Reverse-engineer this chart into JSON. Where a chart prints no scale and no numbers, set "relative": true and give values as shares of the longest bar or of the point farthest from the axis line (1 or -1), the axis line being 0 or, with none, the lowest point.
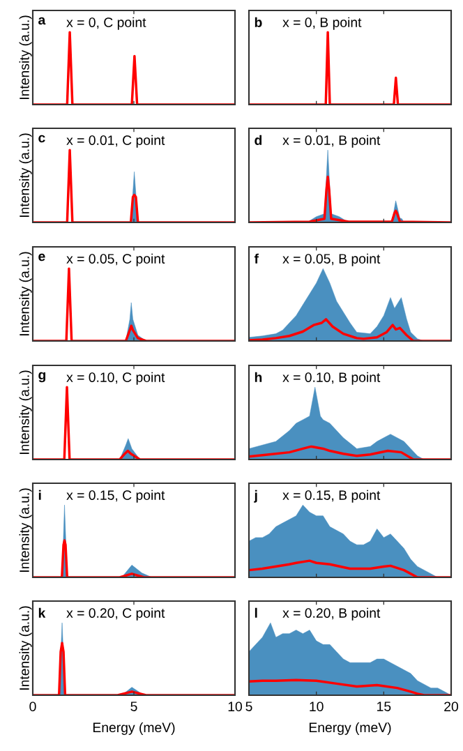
{
  "chart_data": [
    {
      "type": "line",
      "title": "x = 0, C point",
      "annotations": [
        "a"
      ],
      "ylabel": "Intensity (a.u.)",
      "relative": true,
      "xlim": [
        0,
        10
      ],
      "xticks": [
        0,
        5,
        10
      ],
      "tick_labels": false,
      "series": [
        {
          "type": "line",
          "color": "#ff0000",
          "x": [
            0,
            1.7,
            1.83,
            1.96,
            4.9,
            5.03,
            5.16,
            10
          ],
          "values": [
            0,
            0,
            1,
            0,
            0,
            0.67,
            0,
            0
          ]
        }
      ]
    },
    {
      "type": "line",
      "title": "x = 0, B point",
      "annotations": [
        "b"
      ],
      "relative": true,
      "xlim": [
        5,
        20
      ],
      "xticks": [
        5,
        10,
        15,
        20
      ],
      "tick_labels": false,
      "series": [
        {
          "type": "line",
          "color": "#ff0000",
          "x": [
            5,
            10.7,
            10.85,
            11.0,
            15.75,
            15.9,
            16.05,
            20
          ],
          "values": [
            0,
            0,
            1,
            0,
            0,
            0.37,
            0,
            0
          ]
        }
      ]
    },
    {
      "type": "line",
      "title": "x = 0.01, C point",
      "annotations": [
        "c"
      ],
      "ylabel": "Intensity (a.u.)",
      "relative": true,
      "xlim": [
        0,
        10
      ],
      "xticks": [
        0,
        5,
        10
      ],
      "tick_labels": false,
      "series": [
        {
          "type": "area",
          "color": "#4a90c0",
          "x": [
            4.85,
            5.02,
            5.2
          ],
          "values": [
            0,
            0.7,
            0
          ]
        },
        {
          "type": "line",
          "color": "#ff0000",
          "x": [
            0,
            1.7,
            1.83,
            1.96,
            4.85,
            4.95,
            5.02,
            5.1,
            5.2,
            10
          ],
          "values": [
            0,
            0,
            1,
            0,
            0,
            0.35,
            0.38,
            0.35,
            0,
            0
          ]
        }
      ]
    },
    {
      "type": "line",
      "title": "x = 0.01, B point",
      "annotations": [
        "d"
      ],
      "relative": true,
      "xlim": [
        5,
        20
      ],
      "xticks": [
        5,
        10,
        15,
        20
      ],
      "tick_labels": false,
      "series": [
        {
          "type": "area",
          "color": "#4a90c0",
          "x": [
            9.3,
            10,
            10.6,
            10.85,
            11.1,
            11.7,
            12.4,
            15.6,
            15.89,
            16.2,
            16.35,
            16.5
          ],
          "values": [
            0,
            0.08,
            0.12,
            1.0,
            0.12,
            0.08,
            0,
            0,
            0.3,
            0.06,
            0.05,
            0
          ]
        },
        {
          "type": "line",
          "color": "#ff0000",
          "x": [
            5,
            9.5,
            10.6,
            10.75,
            10.85,
            10.95,
            11.1,
            12.4,
            15.6,
            15.8,
            15.89,
            15.98,
            16.2,
            20
          ],
          "values": [
            0,
            0.01,
            0.05,
            0.45,
            0.63,
            0.45,
            0.05,
            0.01,
            0.01,
            0.13,
            0.16,
            0.13,
            0.01,
            0
          ]
        }
      ]
    },
    {
      "type": "line",
      "title": "x = 0.05, C point",
      "annotations": [
        "e"
      ],
      "ylabel": "Intensity (a.u.)",
      "relative": true,
      "xlim": [
        0,
        10
      ],
      "xticks": [
        0,
        5,
        10
      ],
      "tick_labels": false,
      "series": [
        {
          "type": "area",
          "color": "#4a90c0",
          "x": [
            4.6,
            4.8,
            4.87,
            4.95,
            5.2,
            5.6
          ],
          "values": [
            0,
            0.3,
            0.53,
            0.3,
            0.08,
            0
          ]
        },
        {
          "type": "line",
          "color": "#ff0000",
          "x": [
            0,
            1.66,
            1.79,
            1.92,
            4.6,
            4.8,
            4.87,
            4.95,
            5.2,
            5.6,
            10
          ],
          "values": [
            0,
            0,
            1,
            0,
            0,
            0.15,
            0.21,
            0.15,
            0.04,
            0,
            0
          ]
        }
      ]
    },
    {
      "type": "line",
      "title": "x = 0.05, B point",
      "annotations": [
        "f"
      ],
      "relative": true,
      "xlim": [
        5,
        20
      ],
      "xticks": [
        5,
        10,
        15,
        20
      ],
      "tick_labels": false,
      "series": [
        {
          "type": "area",
          "color": "#4a90c0",
          "x": [
            5,
            6,
            7,
            7.5,
            8,
            8.5,
            9,
            9.5,
            10,
            10.5,
            11,
            11.5,
            12,
            12.5,
            13,
            14,
            14.5,
            15,
            15.5,
            15.8,
            16.3,
            16.7,
            17,
            17.5,
            18
          ],
          "values": [
            0.05,
            0.07,
            0.1,
            0.15,
            0.25,
            0.35,
            0.5,
            0.65,
            0.8,
            1.0,
            0.8,
            0.55,
            0.4,
            0.25,
            0.12,
            0.1,
            0.2,
            0.35,
            0.6,
            0.45,
            0.6,
            0.3,
            0.12,
            0.03,
            0
          ]
        },
        {
          "type": "line",
          "color": "#ff0000",
          "x": [
            5,
            6,
            7,
            8,
            9,
            9.8,
            10.4,
            10.72,
            11.2,
            12,
            13,
            13.5,
            14.5,
            15.2,
            15.66,
            15.9,
            16.2,
            16.7,
            17.2,
            20
          ],
          "values": [
            0.01,
            0.02,
            0.04,
            0.07,
            0.13,
            0.22,
            0.25,
            0.3,
            0.2,
            0.1,
            0.04,
            0.03,
            0.05,
            0.12,
            0.22,
            0.16,
            0.18,
            0.08,
            0,
            0
          ]
        }
      ]
    },
    {
      "type": "line",
      "title": "x = 0.10, C point",
      "annotations": [
        "g"
      ],
      "ylabel": "Intensity (a.u.)",
      "relative": true,
      "xlim": [
        0,
        10
      ],
      "xticks": [
        0,
        5,
        10
      ],
      "tick_labels": false,
      "series": [
        {
          "type": "area",
          "color": "#4a90c0",
          "x": [
            4.3,
            4.6,
            4.72,
            4.9,
            5.3
          ],
          "values": [
            0,
            0.2,
            0.29,
            0.15,
            0
          ]
        },
        {
          "type": "line",
          "color": "#ff0000",
          "x": [
            0,
            1.56,
            1.69,
            1.82,
            4.3,
            4.55,
            4.7,
            4.85,
            5.3,
            10
          ],
          "values": [
            0,
            0,
            1,
            0,
            0,
            0.08,
            0.12,
            0.08,
            0,
            0
          ]
        }
      ]
    },
    {
      "type": "line",
      "title": "x = 0.10, B point",
      "annotations": [
        "h"
      ],
      "relative": true,
      "xlim": [
        5,
        20
      ],
      "xticks": [
        5,
        10,
        15,
        20
      ],
      "tick_labels": false,
      "series": [
        {
          "type": "area",
          "color": "#4a90c0",
          "x": [
            5,
            6,
            7,
            8,
            8.5,
            9,
            9.5,
            9.9,
            10.3,
            10.5,
            11,
            12,
            13,
            14,
            14.5,
            15,
            15.5,
            16,
            16.5,
            17,
            17.5,
            18
          ],
          "values": [
            0.15,
            0.2,
            0.25,
            0.4,
            0.5,
            0.55,
            0.6,
            1.0,
            0.6,
            0.55,
            0.5,
            0.3,
            0.15,
            0.18,
            0.25,
            0.3,
            0.35,
            0.3,
            0.25,
            0.15,
            0.05,
            0
          ]
        },
        {
          "type": "line",
          "color": "#ff0000",
          "x": [
            5,
            6,
            7,
            8,
            9,
            9.6,
            10.5,
            11,
            12,
            13,
            14,
            15.3,
            16.3,
            17.2,
            20
          ],
          "values": [
            0.04,
            0.06,
            0.08,
            0.1,
            0.15,
            0.18,
            0.15,
            0.12,
            0.08,
            0.05,
            0.07,
            0.12,
            0.1,
            0,
            0
          ]
        }
      ]
    },
    {
      "type": "line",
      "title": "x = 0.15, C point",
      "annotations": [
        "i"
      ],
      "ylabel": "Intensity (a.u.)",
      "relative": true,
      "xlim": [
        0,
        10
      ],
      "xticks": [
        0,
        5,
        10
      ],
      "tick_labels": false,
      "series": [
        {
          "type": "area",
          "color": "#4a90c0",
          "x": [
            1.45,
            1.57,
            1.7,
            4.4,
            4.9,
            5.4,
            5.9
          ],
          "values": [
            0,
            1.0,
            0,
            0,
            0.17,
            0.06,
            0
          ]
        },
        {
          "type": "line",
          "color": "#ff0000",
          "x": [
            0,
            1.44,
            1.52,
            1.57,
            1.62,
            1.7,
            4.3,
            4.9,
            5.5,
            10
          ],
          "values": [
            0,
            0,
            0.45,
            0.51,
            0.45,
            0,
            0,
            0.05,
            0,
            0
          ]
        }
      ]
    },
    {
      "type": "line",
      "title": "x = 0.15, B point",
      "annotations": [
        "j"
      ],
      "relative": true,
      "xlim": [
        5,
        20
      ],
      "xticks": [
        5,
        10,
        15,
        20
      ],
      "tick_labels": false,
      "series": [
        {
          "type": "area",
          "color": "#4a90c0",
          "x": [
            5,
            5.5,
            6,
            6.5,
            7,
            7.5,
            8,
            8.5,
            9,
            9.5,
            10,
            10.5,
            11,
            11.5,
            12,
            12.5,
            13,
            13.5,
            14,
            14.5,
            15,
            15.5,
            16,
            16.5,
            17,
            17.5,
            18,
            18.5,
            19
          ],
          "values": [
            0.5,
            0.55,
            0.55,
            0.6,
            0.7,
            0.75,
            0.8,
            0.85,
            1.0,
            0.9,
            0.85,
            0.85,
            0.7,
            0.65,
            0.6,
            0.5,
            0.45,
            0.45,
            0.5,
            0.67,
            0.55,
            0.6,
            0.5,
            0.4,
            0.25,
            0.15,
            0.1,
            0.05,
            0
          ]
        },
        {
          "type": "line",
          "color": "#ff0000",
          "x": [
            5,
            6,
            7,
            8,
            8.5,
            9.5,
            10,
            11,
            12.5,
            14,
            15,
            15.5,
            16.5,
            17.5,
            20
          ],
          "values": [
            0.1,
            0.12,
            0.15,
            0.18,
            0.2,
            0.23,
            0.2,
            0.18,
            0.12,
            0.12,
            0.15,
            0.16,
            0.1,
            0,
            0
          ]
        }
      ]
    },
    {
      "type": "line",
      "title": "x = 0.20, C point",
      "annotations": [
        "k"
      ],
      "xlabel": "Energy (meV)",
      "ylabel": "Intensity (a.u.)",
      "relative": true,
      "xlim": [
        0,
        10
      ],
      "xticks": [
        0,
        5,
        10
      ],
      "tick_labels": "x",
      "series": [
        {
          "type": "area",
          "color": "#4a90c0",
          "x": [
            1.3,
            1.45,
            1.6,
            4.4,
            4.9,
            5.5
          ],
          "values": [
            0,
            1.0,
            0,
            0,
            0.11,
            0
          ]
        },
        {
          "type": "line",
          "color": "#ff0000",
          "x": [
            0,
            1.3,
            1.38,
            1.45,
            1.52,
            1.6,
            4.2,
            4.9,
            5.6,
            10
          ],
          "values": [
            0,
            0,
            0.6,
            0.72,
            0.6,
            0,
            0,
            0.05,
            0,
            0
          ]
        }
      ]
    },
    {
      "type": "line",
      "title": "x = 0.20, B point",
      "annotations": [
        "l"
      ],
      "xlabel": "Energy (meV)",
      "relative": true,
      "xlim": [
        5,
        20
      ],
      "xticks": [
        5,
        10,
        15,
        20
      ],
      "tick_labels": "x",
      "series": [
        {
          "type": "area",
          "color": "#4a90c0",
          "x": [
            5,
            5.5,
            6,
            6.6,
            7,
            7.5,
            8,
            8.5,
            9,
            9.5,
            10,
            10.5,
            11,
            11.5,
            12,
            12.5,
            13,
            13.5,
            14,
            14.5,
            15,
            15.5,
            16,
            16.5,
            17,
            17.5,
            18,
            18.5,
            19,
            19.5,
            20
          ],
          "values": [
            0.6,
            0.7,
            0.8,
            1.0,
            0.8,
            0.85,
            0.85,
            0.9,
            0.85,
            0.9,
            0.75,
            0.7,
            0.7,
            0.6,
            0.5,
            0.45,
            0.45,
            0.45,
            0.45,
            0.5,
            0.5,
            0.45,
            0.4,
            0.35,
            0.3,
            0.2,
            0.15,
            0.1,
            0.1,
            0.05,
            0
          ]
        },
        {
          "type": "line",
          "color": "#ff0000",
          "x": [
            5,
            6,
            7,
            8.5,
            10,
            11.5,
            13,
            14.5,
            16,
            17,
            17.5,
            18,
            20
          ],
          "values": [
            0.19,
            0.2,
            0.2,
            0.21,
            0.2,
            0.16,
            0.12,
            0.14,
            0.1,
            0.05,
            0.02,
            0,
            0
          ]
        }
      ]
    }
  ]
}
